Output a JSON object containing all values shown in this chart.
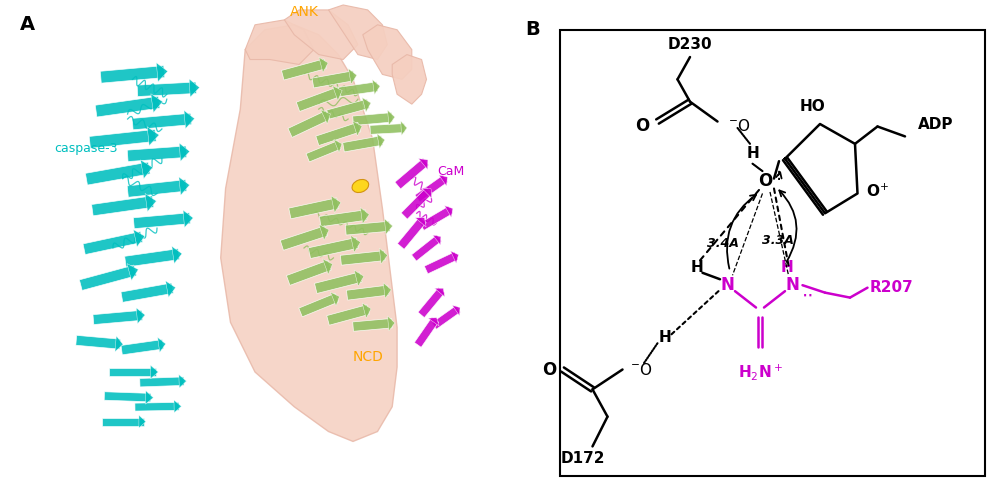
{
  "panel_a_label": "A",
  "panel_b_label": "B",
  "label_ank": "ANK",
  "label_ncd": "NCD",
  "label_cam": "CaM",
  "label_caspase": "caspase-3",
  "label_d230": "D230",
  "label_d172": "D172",
  "label_r207": "R207",
  "label_adp": "ADP",
  "label_ho": "HO",
  "label_dist1": "3.4A",
  "label_dist2": "3.3A",
  "color_magenta": "#cc00cc",
  "color_orange": "#FFA500",
  "color_cyan": "#00BFBF",
  "color_green": "#90C060",
  "color_black": "#000000",
  "color_white": "#ffffff",
  "color_skin": "#f5cfc0",
  "color_skin_edge": "#e8b8a8",
  "background": "#ffffff",
  "fig_width": 10.0,
  "fig_height": 4.96
}
